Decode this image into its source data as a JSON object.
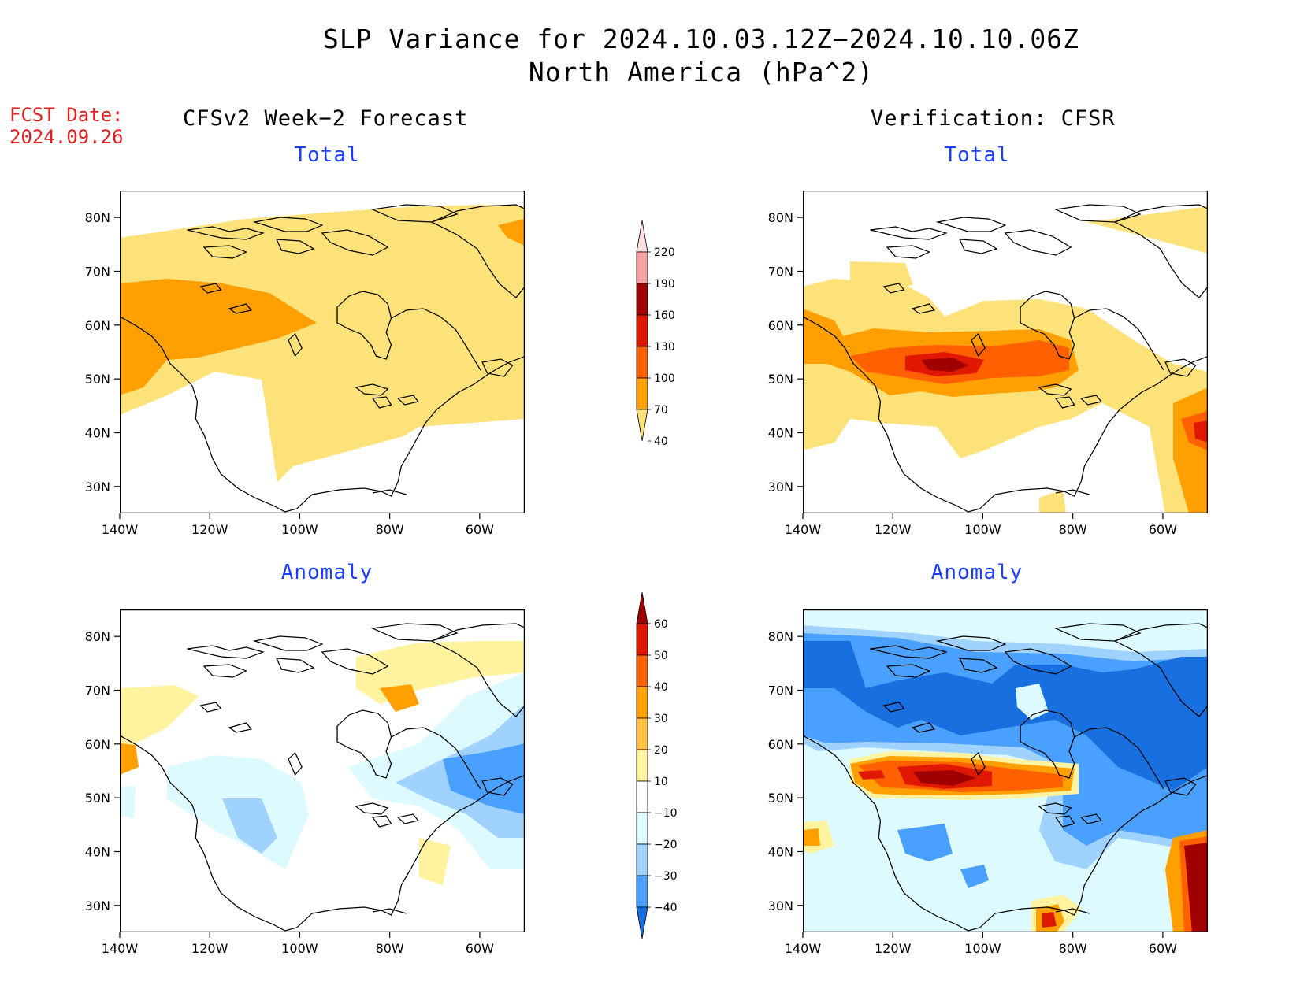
{
  "header": {
    "title_line1": "SLP Variance for 2024.10.03.12Z−2024.10.10.06Z",
    "title_line2": "North America (hPa^2)",
    "fcst_label": "FCST Date:",
    "fcst_date": "2024.09.26",
    "left_column_title": "CFSv2 Week−2 Forecast",
    "right_column_title": "Verification: CFSR"
  },
  "panels": {
    "forecast_total": {
      "title": "Total"
    },
    "forecast_anomaly": {
      "title": "Anomaly"
    },
    "verification_total": {
      "title": "Total"
    },
    "verification_anomaly": {
      "title": "Anomaly"
    }
  },
  "axes": {
    "lon_ticks": [
      "140W",
      "120W",
      "100W",
      "80W",
      "60W"
    ],
    "lon_values": [
      -140,
      -120,
      -100,
      -80,
      -60
    ],
    "lat_ticks": [
      "80N",
      "70N",
      "60N",
      "50N",
      "40N",
      "30N"
    ],
    "lat_values": [
      80,
      70,
      60,
      50,
      40,
      30
    ],
    "lon_range": [
      -140,
      -50
    ],
    "lat_range": [
      25,
      85
    ]
  },
  "colorbars": {
    "total": {
      "labels": [
        "220",
        "190",
        "160",
        "130",
        "100",
        "70",
        "40"
      ],
      "colors": [
        "#fde0e0",
        "#f4a0a0",
        "#a00000",
        "#e01800",
        "#ff6000",
        "#ffa000",
        "#fde27a"
      ]
    },
    "anomaly": {
      "labels": [
        "60",
        "50",
        "40",
        "30",
        "20",
        "10",
        "−10",
        "−20",
        "−30",
        "−40"
      ],
      "colors": [
        "#a00000",
        "#e01800",
        "#ff6000",
        "#ffa000",
        "#ffc040",
        "#fff3a0",
        "#ffffff",
        "#ddfaff",
        "#a0d2ff",
        "#4aa0ff",
        "#1870e0"
      ]
    }
  },
  "chart_data": [
    {
      "type": "heatmap",
      "panel": "forecast_total",
      "title": "Total",
      "units": "hPa^2",
      "levels": [
        40,
        70,
        100,
        130,
        160,
        190,
        220
      ]
    },
    {
      "type": "heatmap",
      "panel": "forecast_anomaly",
      "title": "Anomaly",
      "units": "hPa^2",
      "levels": [
        -40,
        -30,
        -20,
        -10,
        10,
        20,
        30,
        40,
        50,
        60
      ]
    },
    {
      "type": "heatmap",
      "panel": "verification_total",
      "title": "Total",
      "units": "hPa^2",
      "levels": [
        40,
        70,
        100,
        130,
        160,
        190,
        220
      ]
    },
    {
      "type": "heatmap",
      "panel": "verification_anomaly",
      "title": "Anomaly",
      "units": "hPa^2",
      "levels": [
        -40,
        -30,
        -20,
        -10,
        10,
        20,
        30,
        40,
        50,
        60
      ]
    }
  ]
}
